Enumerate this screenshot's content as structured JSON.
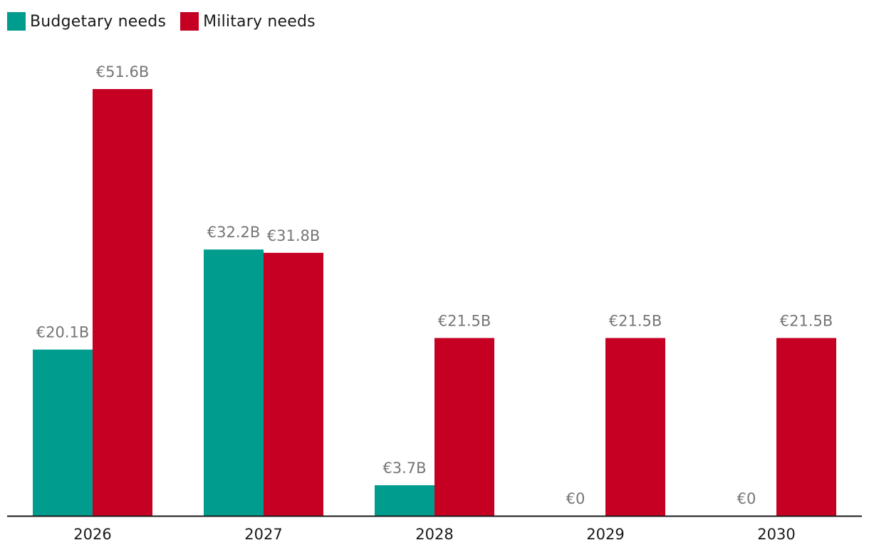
{
  "legend": {
    "budgetary_label": "Budgetary needs",
    "military_label": "Military needs"
  },
  "colors": {
    "budgetary": "#009C8E",
    "military": "#C50022",
    "axis": "#1a1a1a"
  },
  "chart_data": {
    "type": "bar",
    "title": "",
    "xlabel": "",
    "ylabel": "",
    "categories": [
      "2026",
      "2027",
      "2028",
      "2029",
      "2030"
    ],
    "series": [
      {
        "name": "Budgetary needs",
        "values": [
          20.1,
          32.2,
          3.7,
          0,
          0
        ],
        "labels": [
          "€20.1B",
          "€32.2B",
          "€3.7B",
          "€0",
          "€0"
        ]
      },
      {
        "name": "Military needs",
        "values": [
          51.6,
          31.8,
          21.5,
          21.5,
          21.5
        ],
        "labels": [
          "€51.6B",
          "€31.8B",
          "€21.5B",
          "€21.5B",
          "€21.5B"
        ]
      }
    ],
    "ylim": [
      0,
      55
    ],
    "grid": false,
    "legend_position": "top-left"
  }
}
